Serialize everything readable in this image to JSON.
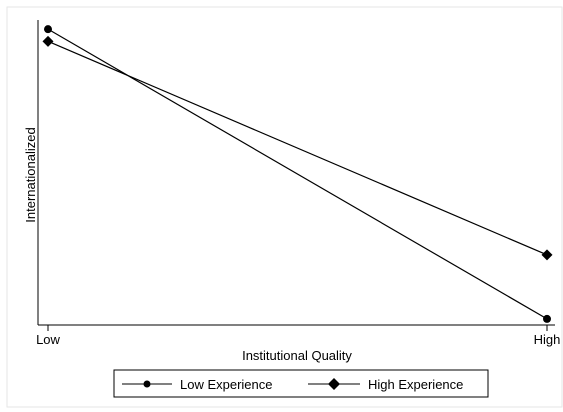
{
  "chart_data": {
    "type": "line",
    "categories": [
      "Low",
      "High"
    ],
    "xlabel": "Institutional Quality",
    "ylabel": "Internationalized",
    "ylim": [
      0,
      1
    ],
    "grid": false,
    "legend_position": "bottom",
    "series": [
      {
        "name": "Low Experience",
        "marker": "circle",
        "values": [
          0.97,
          0.02
        ],
        "color": "#000000"
      },
      {
        "name": "High Experience",
        "marker": "diamond",
        "values": [
          0.93,
          0.23
        ],
        "color": "#000000"
      }
    ]
  }
}
